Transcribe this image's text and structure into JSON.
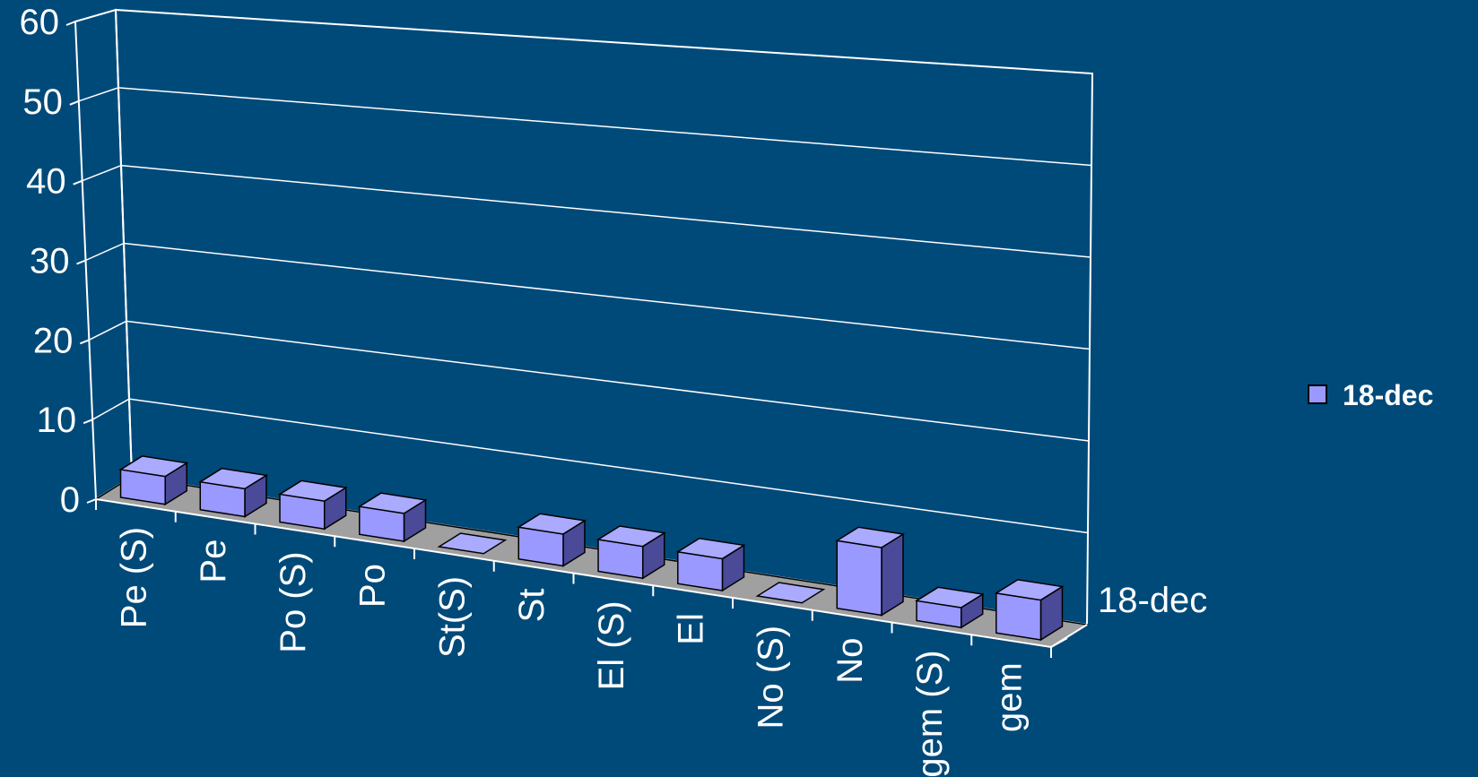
{
  "chart_data": {
    "type": "bar",
    "categories": [
      "Pe (S)",
      "Pe",
      "Po (S)",
      "Po",
      "St(S)",
      "St",
      "El (S)",
      "El",
      "No (S)",
      "No",
      "gem (S)",
      "gem"
    ],
    "series": [
      {
        "name": "18-dec",
        "values": [
          3.5,
          3.5,
          3.5,
          3.5,
          0,
          4,
          4,
          4,
          0,
          8.5,
          2.5,
          5
        ]
      }
    ],
    "y_ticks": [
      "0",
      "10",
      "20",
      "30",
      "40",
      "50",
      "60"
    ],
    "ylim": [
      0,
      60
    ],
    "depth_label": "18-dec",
    "legend_position": "right",
    "colors": {
      "background": "#004a7a",
      "bar_front": "#9999ff",
      "bar_top": "#aaaaff",
      "bar_side": "#4a4a99",
      "floor": "#a0a0a0",
      "grid": "#ffffff"
    }
  }
}
